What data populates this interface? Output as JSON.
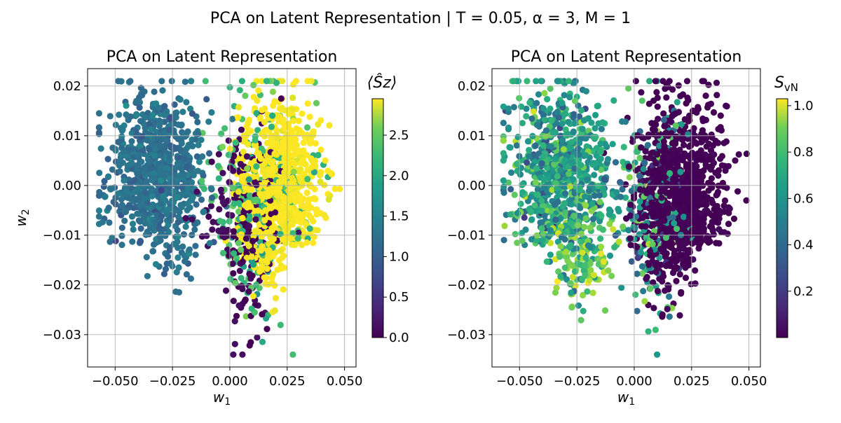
{
  "suptitle": "PCA on Latent Representation | T = 0.05, α = 3, M = 1",
  "chart_data": [
    {
      "type": "scatter",
      "title": "PCA on Latent Representation",
      "xlabel": "w",
      "xlabel_sub": "1",
      "ylabel": "w",
      "ylabel_sub": "2",
      "xlim": [
        -0.062,
        0.055
      ],
      "ylim": [
        -0.0365,
        0.0235
      ],
      "xticks": [
        -0.05,
        -0.025,
        0.0,
        0.025,
        0.05
      ],
      "xtick_labels": [
        "−0.050",
        "−0.025",
        "0.000",
        "0.025",
        "0.050"
      ],
      "yticks": [
        0.02,
        0.01,
        0.0,
        -0.01,
        -0.02,
        -0.03
      ],
      "ytick_labels": [
        "0.02",
        "0.01",
        "0.00",
        "−0.01",
        "−0.02",
        "−0.03"
      ],
      "grid": true,
      "colormap": "viridis",
      "color_label": "⟨Ŝz⟩",
      "color_range": [
        0.0,
        2.95
      ],
      "colorbar_ticks": [
        0.0,
        0.5,
        1.0,
        1.5,
        2.0,
        2.5
      ],
      "colorbar_tick_labels": [
        "0.0",
        "0.5",
        "1.0",
        "1.5",
        "2.0",
        "2.5"
      ],
      "clusters": [
        {
          "name_hint": "left",
          "center": [
            -0.032,
            0.002
          ],
          "spread": [
            0.011,
            0.0085
          ],
          "count": 800,
          "color_value": 1.1,
          "color_jitter": 0.12
        },
        {
          "name_hint": "right-high",
          "center": [
            0.022,
            0.0
          ],
          "spread": [
            0.009,
            0.0085
          ],
          "count": 820,
          "color_value": 2.95,
          "color_jitter": 0.05
        },
        {
          "name_hint": "right-mid",
          "center": [
            0.014,
            -0.004
          ],
          "spread": [
            0.012,
            0.011
          ],
          "count": 260,
          "color_value": 2.0,
          "color_jitter": 0.2
        },
        {
          "name_hint": "right-low",
          "center": [
            0.006,
            -0.008
          ],
          "spread": [
            0.009,
            0.009
          ],
          "count": 220,
          "color_value": 0.05,
          "color_jitter": 0.05
        }
      ]
    },
    {
      "type": "scatter",
      "title": "PCA on Latent Representation",
      "xlabel": "w",
      "xlabel_sub": "1",
      "ylabel": "",
      "ylabel_sub": "",
      "xlim": [
        -0.062,
        0.055
      ],
      "ylim": [
        -0.0365,
        0.0235
      ],
      "xticks": [
        -0.05,
        -0.025,
        0.0,
        0.025,
        0.05
      ],
      "xtick_labels": [
        "−0.050",
        "−0.025",
        "0.000",
        "0.025",
        "0.050"
      ],
      "yticks": [
        0.02,
        0.01,
        0.0,
        -0.01,
        -0.02,
        -0.03
      ],
      "ytick_labels": [
        "0.02",
        "0.01",
        "0.00",
        "−0.01",
        "−0.02",
        "−0.03"
      ],
      "grid": true,
      "colormap": "viridis",
      "color_label": "SvN",
      "color_range": [
        0.0,
        1.03
      ],
      "colorbar_ticks": [
        0.2,
        0.4,
        0.6,
        0.8,
        1.0
      ],
      "colorbar_tick_labels": [
        "0.2",
        "0.4",
        "0.6",
        "0.8",
        "1.0"
      ],
      "clusters": [
        {
          "name_hint": "left",
          "center": [
            -0.032,
            0.002
          ],
          "spread": [
            0.011,
            0.0085
          ],
          "count": 800,
          "color_value": 0.55,
          "color_jitter": 0.15
        },
        {
          "name_hint": "left-outer",
          "center": [
            -0.03,
            -0.012
          ],
          "spread": [
            0.012,
            0.006
          ],
          "count": 180,
          "color_value": 0.8,
          "color_jitter": 0.1
        },
        {
          "name_hint": "right-low",
          "center": [
            0.02,
            -0.002
          ],
          "spread": [
            0.01,
            0.009
          ],
          "count": 1000,
          "color_value": 0.0,
          "color_jitter": 0.01
        },
        {
          "name_hint": "right-mid",
          "center": [
            0.006,
            -0.006
          ],
          "spread": [
            0.009,
            0.01
          ],
          "count": 220,
          "color_value": 0.55,
          "color_jitter": 0.2
        }
      ]
    }
  ]
}
